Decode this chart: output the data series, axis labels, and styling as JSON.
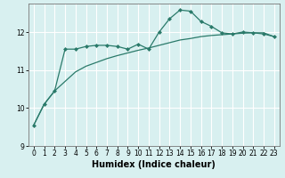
{
  "title": "",
  "xlabel": "Humidex (Indice chaleur)",
  "ylabel": "",
  "bg_color": "#d8f0f0",
  "grid_color": "#ffffff",
  "line_color": "#2a7a6a",
  "xlim": [
    -0.5,
    23.5
  ],
  "ylim": [
    9.0,
    12.75
  ],
  "yticks": [
    9,
    10,
    11,
    12
  ],
  "xticks": [
    0,
    1,
    2,
    3,
    4,
    5,
    6,
    7,
    8,
    9,
    10,
    11,
    12,
    13,
    14,
    15,
    16,
    17,
    18,
    19,
    20,
    21,
    22,
    23
  ],
  "series1_x": [
    0,
    1,
    2,
    3,
    4,
    5,
    6,
    7,
    8,
    9,
    10,
    11,
    12,
    13,
    14,
    15,
    16,
    17,
    18,
    19,
    20,
    21,
    22,
    23
  ],
  "series1_y": [
    9.55,
    10.1,
    10.45,
    11.55,
    11.55,
    11.62,
    11.65,
    11.65,
    11.62,
    11.55,
    11.68,
    11.55,
    12.0,
    12.35,
    12.58,
    12.55,
    12.28,
    12.15,
    11.98,
    11.95,
    12.0,
    11.98,
    11.95,
    11.88
  ],
  "series2_x": [
    0,
    1,
    2,
    3,
    4,
    5,
    6,
    7,
    8,
    9,
    10,
    11,
    12,
    13,
    14,
    15,
    16,
    17,
    18,
    19,
    20,
    21,
    22,
    23
  ],
  "series2_y": [
    9.55,
    10.1,
    10.45,
    10.7,
    10.95,
    11.1,
    11.2,
    11.3,
    11.38,
    11.45,
    11.52,
    11.58,
    11.65,
    11.72,
    11.79,
    11.83,
    11.88,
    11.91,
    11.93,
    11.95,
    11.97,
    11.98,
    11.98,
    11.88
  ],
  "tick_labelsize": 5.5,
  "xlabel_fontsize": 7.0,
  "marker": "D",
  "markersize": 2.0,
  "linewidth": 0.9
}
